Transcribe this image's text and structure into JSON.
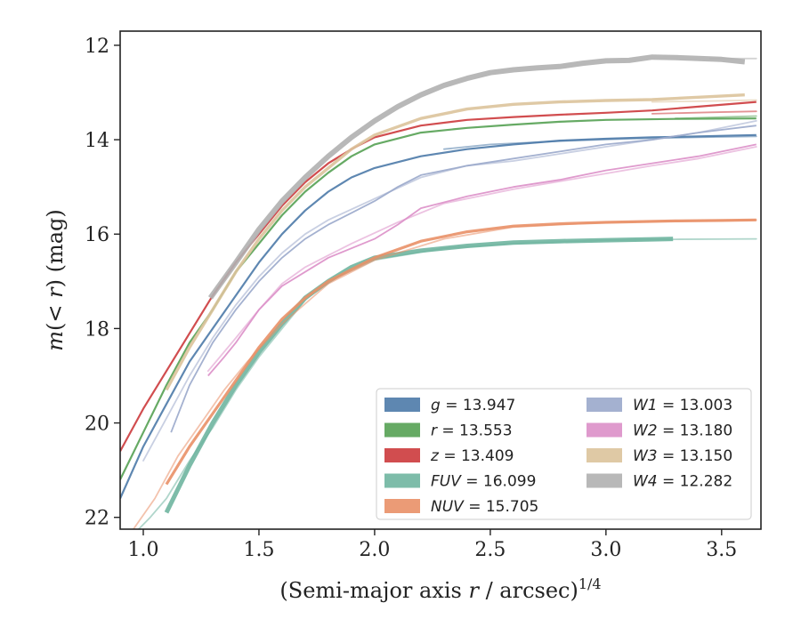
{
  "chart_data": {
    "type": "line",
    "title": "",
    "xlabel": "(Semi-major axis r / arcsec)",
    "xlabel_prefix": "(Semi-major axis ",
    "xlabel_var": "r",
    "xlabel_suffix": " / arcsec)",
    "xlabel_sup": "1/4",
    "ylabel": "m(< r) (mag)",
    "ylabel_m": "m",
    "ylabel_inner": "(< ",
    "ylabel_var": "r",
    "ylabel_close": ")",
    "ylabel_unit": " (mag)",
    "xlim": [
      0.9,
      3.67
    ],
    "ylim": [
      22.25,
      11.7
    ],
    "y_inverted": true,
    "grid": false,
    "legend_position": "lower-right",
    "x_ticks": [
      1.0,
      1.5,
      2.0,
      2.5,
      3.0,
      3.5
    ],
    "x_tick_labels": [
      "1.0",
      "1.5",
      "2.0",
      "2.5",
      "3.0",
      "3.5"
    ],
    "y_ticks": [
      12,
      14,
      16,
      18,
      20,
      22
    ],
    "y_tick_labels": [
      "12",
      "14",
      "16",
      "18",
      "20",
      "22"
    ],
    "series": [
      {
        "name": "g",
        "label_value": "13.947",
        "color": "#4c7aa8",
        "main": [
          [
            0.9,
            21.6
          ],
          [
            1.0,
            20.5
          ],
          [
            1.1,
            19.6
          ],
          [
            1.2,
            18.7
          ],
          [
            1.3,
            18.0
          ],
          [
            1.4,
            17.3
          ],
          [
            1.5,
            16.6
          ],
          [
            1.6,
            16.0
          ],
          [
            1.7,
            15.5
          ],
          [
            1.8,
            15.1
          ],
          [
            1.9,
            14.8
          ],
          [
            2.0,
            14.6
          ],
          [
            2.2,
            14.35
          ],
          [
            2.4,
            14.2
          ],
          [
            2.6,
            14.1
          ],
          [
            2.8,
            14.02
          ],
          [
            3.0,
            13.98
          ],
          [
            3.2,
            13.95
          ],
          [
            3.4,
            13.93
          ],
          [
            3.65,
            13.9
          ]
        ],
        "faint": [
          [
            2.3,
            14.2
          ],
          [
            2.5,
            14.1
          ],
          [
            2.8,
            14.03
          ],
          [
            3.1,
            13.98
          ],
          [
            3.4,
            13.95
          ],
          [
            3.65,
            13.93
          ]
        ]
      },
      {
        "name": "r",
        "label_value": "13.553",
        "color": "#55a153",
        "main": [
          [
            0.9,
            21.2
          ],
          [
            1.0,
            20.2
          ],
          [
            1.1,
            19.2
          ],
          [
            1.2,
            18.3
          ],
          [
            1.3,
            17.6
          ],
          [
            1.4,
            16.8
          ],
          [
            1.5,
            16.2
          ],
          [
            1.6,
            15.6
          ],
          [
            1.7,
            15.1
          ],
          [
            1.8,
            14.7
          ],
          [
            1.9,
            14.35
          ],
          [
            2.0,
            14.1
          ],
          [
            2.2,
            13.85
          ],
          [
            2.4,
            13.75
          ],
          [
            2.6,
            13.68
          ],
          [
            2.8,
            13.62
          ],
          [
            3.0,
            13.58
          ],
          [
            3.3,
            13.56
          ],
          [
            3.65,
            13.55
          ]
        ],
        "faint": [
          [
            3.3,
            13.55
          ],
          [
            3.5,
            13.52
          ],
          [
            3.65,
            13.5
          ]
        ]
      },
      {
        "name": "z",
        "label_value": "13.409",
        "color": "#cc3a3c",
        "main": [
          [
            0.9,
            20.6
          ],
          [
            1.0,
            19.7
          ],
          [
            1.1,
            18.9
          ],
          [
            1.2,
            18.1
          ],
          [
            1.3,
            17.3
          ],
          [
            1.4,
            16.6
          ],
          [
            1.5,
            16.0
          ],
          [
            1.6,
            15.4
          ],
          [
            1.7,
            14.9
          ],
          [
            1.8,
            14.5
          ],
          [
            1.9,
            14.2
          ],
          [
            2.0,
            13.95
          ],
          [
            2.2,
            13.7
          ],
          [
            2.4,
            13.58
          ],
          [
            2.6,
            13.52
          ],
          [
            2.8,
            13.47
          ],
          [
            3.0,
            13.43
          ],
          [
            3.2,
            13.38
          ],
          [
            3.4,
            13.3
          ],
          [
            3.65,
            13.2
          ]
        ],
        "faint": [
          [
            3.2,
            13.45
          ],
          [
            3.45,
            13.42
          ],
          [
            3.65,
            13.4
          ]
        ]
      },
      {
        "name": "FUV",
        "label_value": "16.099",
        "color": "#6fb5a0",
        "main": [
          [
            1.1,
            21.9
          ],
          [
            1.2,
            20.9
          ],
          [
            1.3,
            20.0
          ],
          [
            1.4,
            19.2
          ],
          [
            1.5,
            18.5
          ],
          [
            1.6,
            17.9
          ],
          [
            1.7,
            17.35
          ],
          [
            1.8,
            17.0
          ],
          [
            1.9,
            16.7
          ],
          [
            2.0,
            16.5
          ],
          [
            2.2,
            16.35
          ],
          [
            2.4,
            16.25
          ],
          [
            2.6,
            16.18
          ],
          [
            2.8,
            16.15
          ],
          [
            3.0,
            16.13
          ],
          [
            3.2,
            16.11
          ],
          [
            3.29,
            16.1
          ]
        ],
        "faint": [
          [
            0.95,
            22.4
          ],
          [
            1.03,
            22.0
          ],
          [
            1.1,
            21.6
          ],
          [
            1.2,
            20.8
          ],
          [
            1.3,
            20.1
          ],
          [
            1.4,
            19.3
          ],
          [
            1.5,
            18.6
          ],
          [
            1.6,
            18.0
          ],
          [
            1.7,
            17.4
          ],
          [
            1.8,
            17.0
          ],
          [
            2.0,
            16.55
          ],
          [
            2.3,
            16.3
          ],
          [
            2.6,
            16.2
          ],
          [
            3.0,
            16.13
          ],
          [
            3.3,
            16.11
          ],
          [
            3.65,
            16.1
          ]
        ]
      },
      {
        "name": "NUV",
        "label_value": "15.705",
        "color": "#e99067",
        "main": [
          [
            1.1,
            21.3
          ],
          [
            1.2,
            20.5
          ],
          [
            1.3,
            19.8
          ],
          [
            1.4,
            19.1
          ],
          [
            1.5,
            18.4
          ],
          [
            1.6,
            17.8
          ],
          [
            1.7,
            17.35
          ],
          [
            1.8,
            17.0
          ],
          [
            1.9,
            16.75
          ],
          [
            2.0,
            16.5
          ],
          [
            2.2,
            16.15
          ],
          [
            2.4,
            15.95
          ],
          [
            2.6,
            15.83
          ],
          [
            2.8,
            15.78
          ],
          [
            3.0,
            15.75
          ],
          [
            3.3,
            15.72
          ],
          [
            3.5,
            15.71
          ],
          [
            3.65,
            15.7
          ]
        ],
        "faint": [
          [
            0.95,
            22.3
          ],
          [
            1.05,
            21.6
          ],
          [
            1.15,
            20.7
          ],
          [
            1.25,
            20.0
          ],
          [
            1.35,
            19.3
          ],
          [
            1.45,
            18.7
          ],
          [
            1.6,
            17.9
          ],
          [
            1.8,
            17.05
          ],
          [
            2.0,
            16.55
          ],
          [
            2.3,
            16.1
          ],
          [
            2.6,
            15.85
          ],
          [
            3.0,
            15.75
          ],
          [
            3.65,
            15.7
          ]
        ]
      },
      {
        "name": "W1",
        "label_value": "13.003",
        "color": "#9aa8cb",
        "main": [
          [
            1.12,
            20.2
          ],
          [
            1.2,
            19.2
          ],
          [
            1.3,
            18.3
          ],
          [
            1.4,
            17.6
          ],
          [
            1.5,
            17.0
          ],
          [
            1.6,
            16.5
          ],
          [
            1.7,
            16.1
          ],
          [
            1.8,
            15.8
          ],
          [
            1.9,
            15.55
          ],
          [
            2.0,
            15.3
          ],
          [
            2.1,
            15.0
          ],
          [
            2.2,
            14.75
          ],
          [
            2.4,
            14.55
          ],
          [
            2.6,
            14.4
          ],
          [
            2.8,
            14.25
          ],
          [
            3.0,
            14.1
          ],
          [
            3.2,
            14.0
          ],
          [
            3.4,
            13.85
          ],
          [
            3.65,
            13.7
          ]
        ],
        "faint": [
          [
            1.0,
            20.8
          ],
          [
            1.1,
            19.9
          ],
          [
            1.2,
            19.0
          ],
          [
            1.3,
            18.2
          ],
          [
            1.4,
            17.5
          ],
          [
            1.5,
            16.9
          ],
          [
            1.6,
            16.4
          ],
          [
            1.7,
            16.0
          ],
          [
            1.8,
            15.7
          ],
          [
            2.0,
            15.25
          ],
          [
            2.2,
            14.8
          ],
          [
            2.4,
            14.55
          ],
          [
            2.6,
            14.45
          ],
          [
            2.8,
            14.3
          ],
          [
            3.0,
            14.15
          ],
          [
            3.2,
            14.0
          ],
          [
            3.4,
            13.85
          ],
          [
            3.65,
            13.6
          ]
        ]
      },
      {
        "name": "W2",
        "label_value": "13.180",
        "color": "#dc8fc8",
        "main": [
          [
            1.28,
            19.0
          ],
          [
            1.35,
            18.6
          ],
          [
            1.4,
            18.3
          ],
          [
            1.5,
            17.6
          ],
          [
            1.6,
            17.1
          ],
          [
            1.7,
            16.8
          ],
          [
            1.8,
            16.5
          ],
          [
            1.9,
            16.3
          ],
          [
            2.0,
            16.1
          ],
          [
            2.1,
            15.8
          ],
          [
            2.2,
            15.45
          ],
          [
            2.4,
            15.2
          ],
          [
            2.6,
            15.0
          ],
          [
            2.8,
            14.85
          ],
          [
            3.0,
            14.65
          ],
          [
            3.2,
            14.5
          ],
          [
            3.4,
            14.35
          ],
          [
            3.65,
            14.1
          ]
        ],
        "faint": [
          [
            1.28,
            18.9
          ],
          [
            1.4,
            18.2
          ],
          [
            1.5,
            17.6
          ],
          [
            1.6,
            17.05
          ],
          [
            1.7,
            16.7
          ],
          [
            1.8,
            16.45
          ],
          [
            1.9,
            16.2
          ],
          [
            2.1,
            15.75
          ],
          [
            2.3,
            15.35
          ],
          [
            2.6,
            15.05
          ],
          [
            2.9,
            14.8
          ],
          [
            3.2,
            14.55
          ],
          [
            3.4,
            14.4
          ],
          [
            3.65,
            14.15
          ]
        ]
      },
      {
        "name": "W3",
        "label_value": "13.150",
        "color": "#dcc39b",
        "main": [
          [
            1.1,
            19.3
          ],
          [
            1.2,
            18.4
          ],
          [
            1.3,
            17.6
          ],
          [
            1.4,
            16.8
          ],
          [
            1.5,
            16.1
          ],
          [
            1.6,
            15.5
          ],
          [
            1.7,
            15.0
          ],
          [
            1.8,
            14.6
          ],
          [
            1.9,
            14.2
          ],
          [
            2.0,
            13.9
          ],
          [
            2.2,
            13.55
          ],
          [
            2.4,
            13.35
          ],
          [
            2.6,
            13.25
          ],
          [
            2.8,
            13.2
          ],
          [
            3.0,
            13.17
          ],
          [
            3.2,
            13.15
          ],
          [
            3.4,
            13.1
          ],
          [
            3.6,
            13.05
          ]
        ],
        "faint": [
          [
            3.2,
            13.2
          ],
          [
            3.45,
            13.18
          ],
          [
            3.65,
            13.16
          ]
        ]
      },
      {
        "name": "W4",
        "label_value": "12.282",
        "color": "#b0b0b0",
        "main": [
          [
            1.29,
            17.35
          ],
          [
            1.4,
            16.6
          ],
          [
            1.5,
            15.9
          ],
          [
            1.6,
            15.3
          ],
          [
            1.7,
            14.8
          ],
          [
            1.8,
            14.35
          ],
          [
            1.9,
            13.95
          ],
          [
            2.0,
            13.6
          ],
          [
            2.1,
            13.3
          ],
          [
            2.2,
            13.05
          ],
          [
            2.3,
            12.85
          ],
          [
            2.4,
            12.7
          ],
          [
            2.5,
            12.58
          ],
          [
            2.6,
            12.52
          ],
          [
            2.7,
            12.48
          ],
          [
            2.8,
            12.45
          ],
          [
            2.9,
            12.38
          ],
          [
            3.0,
            12.33
          ],
          [
            3.1,
            12.32
          ],
          [
            3.2,
            12.25
          ],
          [
            3.3,
            12.26
          ],
          [
            3.4,
            12.28
          ],
          [
            3.5,
            12.3
          ],
          [
            3.6,
            12.35
          ]
        ],
        "faint": [
          [
            3.45,
            12.28
          ],
          [
            3.65,
            12.28
          ]
        ]
      }
    ]
  }
}
